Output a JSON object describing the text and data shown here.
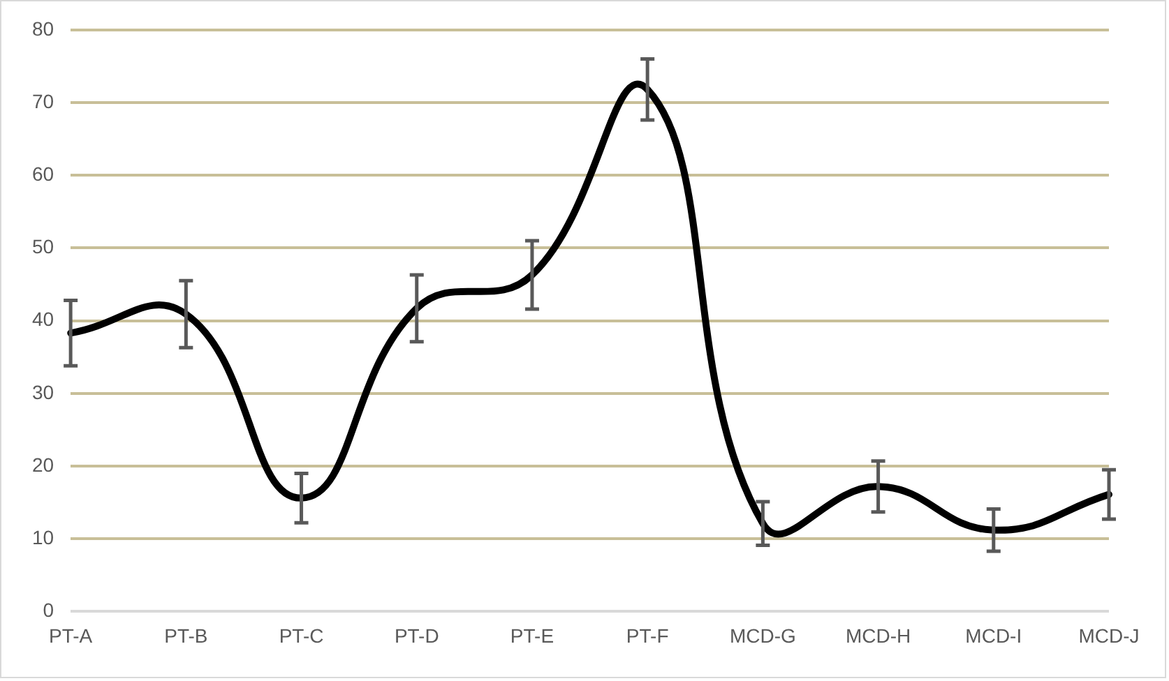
{
  "chart_data": {
    "type": "line",
    "categories": [
      "PT-A",
      "PT-B",
      "PT-C",
      "PT-D",
      "PT-E",
      "PT-F",
      "MCD-G",
      "MCD-H",
      "MCD-I",
      "MCD-J"
    ],
    "series": [
      {
        "color": "#000000",
        "values": [
          38.3,
          40.9,
          15.6,
          41.7,
          46.3,
          71.8,
          12.1,
          17.2,
          11.2,
          16.1
        ],
        "errors": [
          4.5,
          4.6,
          3.4,
          4.6,
          4.7,
          4.2,
          3.0,
          3.5,
          2.9,
          3.4
        ]
      }
    ],
    "ylim": [
      0,
      80
    ],
    "yticks": [
      0,
      10,
      20,
      30,
      40,
      50,
      60,
      70,
      80
    ],
    "grid": "y",
    "legend": false,
    "marker": "none",
    "line_style": "solid"
  }
}
